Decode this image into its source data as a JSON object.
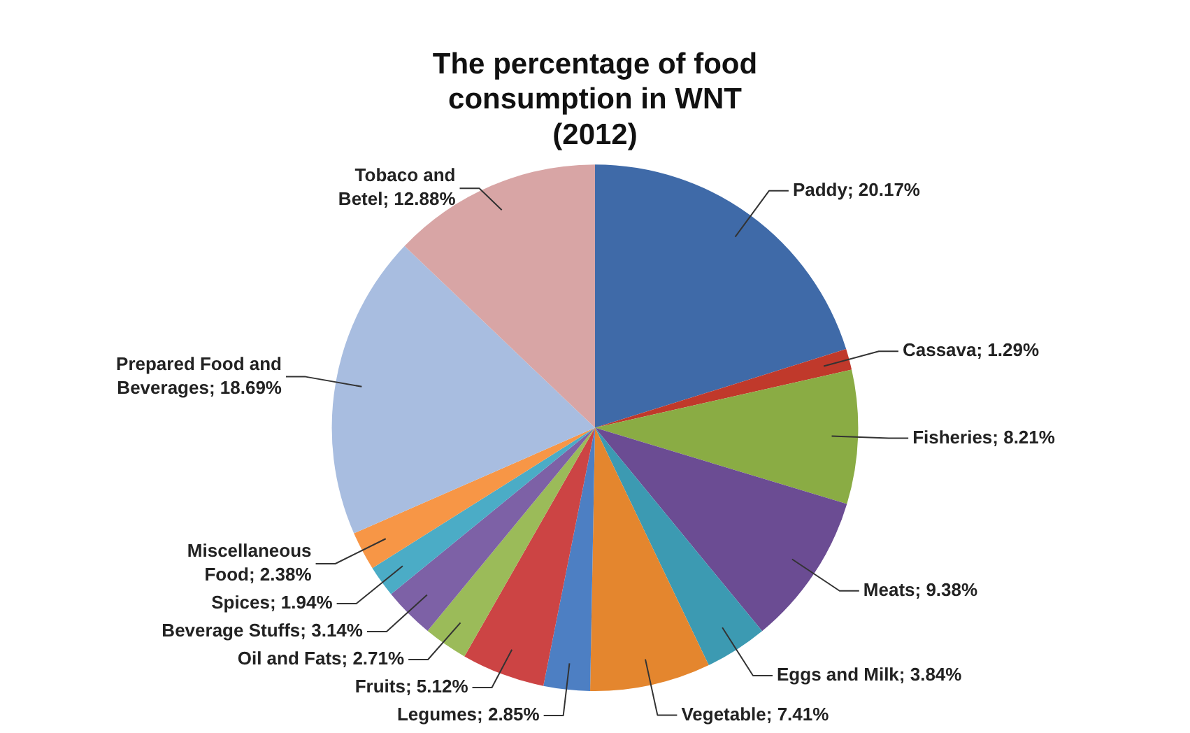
{
  "chart_data": {
    "type": "pie",
    "title": "The percentage of food consumption in WNT (2012)",
    "categories": [
      "Paddy",
      "Cassava",
      "Fisheries",
      "Meats",
      "Eggs and Milk",
      "Vegetable",
      "Legumes",
      "Fruits",
      "Oil and Fats",
      "Beverage Stuffs",
      "Spices",
      "Miscellaneous Food",
      "Prepared Food and Beverages",
      "Tobaco and Betel"
    ],
    "values": [
      20.17,
      1.29,
      8.21,
      9.38,
      3.84,
      7.41,
      2.85,
      5.12,
      2.71,
      3.14,
      1.94,
      2.38,
      18.69,
      12.88
    ],
    "value_labels": [
      "20.17%",
      "1.29%",
      "8.21%",
      "9.38%",
      "3.84%",
      "7.41%",
      "2.85%",
      "5.12%",
      "2.71%",
      "3.14%",
      "1.94%",
      "2.38%",
      "18.69%",
      "12.88%"
    ],
    "colors": [
      "#3f6aa8",
      "#c0392b",
      "#8aac44",
      "#6b4c93",
      "#3c9ab2",
      "#e4862e",
      "#4d7fc3",
      "#cc4444",
      "#9bbb59",
      "#7d61a6",
      "#4bacc6",
      "#f79646",
      "#a8bde0",
      "#d8a5a5"
    ],
    "legend": false
  }
}
